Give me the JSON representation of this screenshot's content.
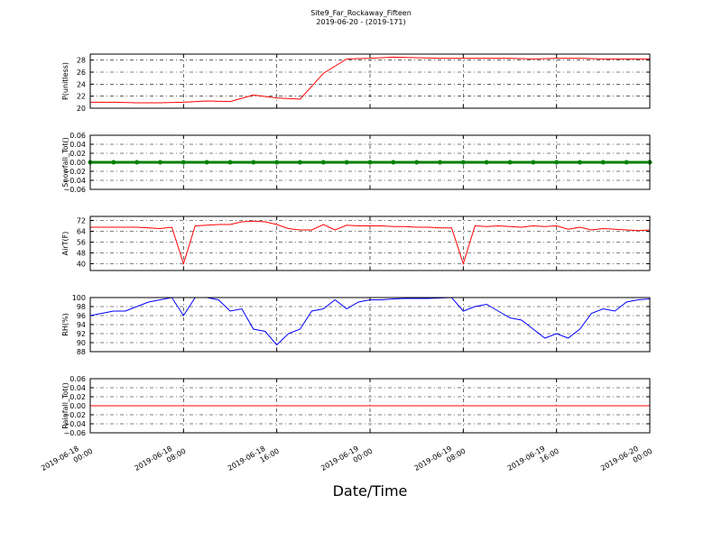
{
  "chart_data": [
    {
      "type": "line",
      "title": "Site9_Far_Rockaway_Fifteen",
      "subtitle": "2019-06-20 - (2019-171)",
      "ylabel": "P(unitless)",
      "color": "#ff0000",
      "x": [
        "2019-06-18 00:00",
        "2019-06-18 02:00",
        "2019-06-18 04:00",
        "2019-06-18 06:00",
        "2019-06-18 08:00",
        "2019-06-18 10:00",
        "2019-06-18 12:00",
        "2019-06-18 14:00",
        "2019-06-18 16:00",
        "2019-06-18 18:00",
        "2019-06-18 20:00",
        "2019-06-18 22:00",
        "2019-06-19 00:00",
        "2019-06-19 02:00",
        "2019-06-19 04:00",
        "2019-06-19 06:00",
        "2019-06-19 08:00",
        "2019-06-19 10:00",
        "2019-06-19 12:00",
        "2019-06-19 14:00",
        "2019-06-19 16:00",
        "2019-06-19 18:00",
        "2019-06-19 20:00",
        "2019-06-19 22:00",
        "2019-06-20 00:00"
      ],
      "values": [
        21.0,
        21.0,
        20.9,
        20.9,
        21.0,
        21.2,
        21.1,
        22.2,
        21.7,
        21.5,
        25.8,
        28.2,
        28.3,
        28.5,
        28.4,
        28.3,
        28.3,
        28.3,
        28.3,
        28.2,
        28.3,
        28.3,
        28.2,
        28.2,
        28.2
      ],
      "xlim": [
        "2019-06-18 00:00",
        "2019-06-20 00:00"
      ],
      "xticks": [
        "2019-06-18 00:00",
        "2019-06-18 08:00",
        "2019-06-18 16:00",
        "2019-06-19 00:00",
        "2019-06-19 08:00",
        "2019-06-19 16:00",
        "2019-06-20 00:00"
      ],
      "ylim": [
        20,
        29
      ],
      "yticks": [
        20,
        22,
        24,
        26,
        28
      ],
      "grid": true
    },
    {
      "type": "line",
      "ylabel": "Snowfall_Tot()",
      "color": "#008000",
      "marker": "o",
      "x": [
        "2019-06-18 00:00",
        "2019-06-18 02:00",
        "2019-06-18 04:00",
        "2019-06-18 06:00",
        "2019-06-18 08:00",
        "2019-06-18 10:00",
        "2019-06-18 12:00",
        "2019-06-18 14:00",
        "2019-06-18 16:00",
        "2019-06-18 18:00",
        "2019-06-18 20:00",
        "2019-06-18 22:00",
        "2019-06-19 00:00",
        "2019-06-19 02:00",
        "2019-06-19 04:00",
        "2019-06-19 06:00",
        "2019-06-19 08:00",
        "2019-06-19 10:00",
        "2019-06-19 12:00",
        "2019-06-19 14:00",
        "2019-06-19 16:00",
        "2019-06-19 18:00",
        "2019-06-19 20:00",
        "2019-06-19 22:00",
        "2019-06-20 00:00"
      ],
      "values": [
        0,
        0,
        0,
        0,
        0,
        0,
        0,
        0,
        0,
        0,
        0,
        0,
        0,
        0,
        0,
        0,
        0,
        0,
        0,
        0,
        0,
        0,
        0,
        0,
        0
      ],
      "xlim": [
        "2019-06-18 00:00",
        "2019-06-20 00:00"
      ],
      "xticks": [
        "2019-06-18 00:00",
        "2019-06-18 08:00",
        "2019-06-18 16:00",
        "2019-06-19 00:00",
        "2019-06-19 08:00",
        "2019-06-19 16:00",
        "2019-06-20 00:00"
      ],
      "ylim": [
        -0.06,
        0.06
      ],
      "yticks": [
        {
          "value": -0.06,
          "label": "−0.06"
        },
        {
          "value": -0.04,
          "label": "−0.04"
        },
        {
          "value": -0.02,
          "label": "−0.02"
        },
        {
          "value": 0,
          "label": "0.00"
        },
        {
          "value": 0.02,
          "label": "0.02"
        },
        {
          "value": 0.04,
          "label": "0.04"
        },
        {
          "value": 0.06,
          "label": "0.06"
        }
      ],
      "grid": true
    },
    {
      "type": "line",
      "ylabel": "AirT(F)",
      "color": "#ff0000",
      "x": [
        "2019-06-18 00:00",
        "2019-06-18 01:00",
        "2019-06-18 02:00",
        "2019-06-18 03:00",
        "2019-06-18 04:00",
        "2019-06-18 05:00",
        "2019-06-18 06:00",
        "2019-06-18 07:00",
        "2019-06-18 08:00",
        "2019-06-18 09:00",
        "2019-06-18 10:00",
        "2019-06-18 11:00",
        "2019-06-18 12:00",
        "2019-06-18 13:00",
        "2019-06-18 14:00",
        "2019-06-18 15:00",
        "2019-06-18 16:00",
        "2019-06-18 17:00",
        "2019-06-18 18:00",
        "2019-06-18 19:00",
        "2019-06-18 20:00",
        "2019-06-18 21:00",
        "2019-06-18 22:00",
        "2019-06-18 23:00",
        "2019-06-19 00:00",
        "2019-06-19 01:00",
        "2019-06-19 02:00",
        "2019-06-19 03:00",
        "2019-06-19 04:00",
        "2019-06-19 05:00",
        "2019-06-19 06:00",
        "2019-06-19 07:00",
        "2019-06-19 08:00",
        "2019-06-19 09:00",
        "2019-06-19 10:00",
        "2019-06-19 11:00",
        "2019-06-19 12:00",
        "2019-06-19 13:00",
        "2019-06-19 14:00",
        "2019-06-19 15:00",
        "2019-06-19 16:00",
        "2019-06-19 17:00",
        "2019-06-19 18:00",
        "2019-06-19 19:00",
        "2019-06-19 20:00",
        "2019-06-19 21:00",
        "2019-06-19 22:00",
        "2019-06-19 23:00",
        "2019-06-20 00:00"
      ],
      "values": [
        67,
        67,
        67,
        67,
        67,
        66.5,
        66,
        67,
        40,
        68,
        68.5,
        69,
        69,
        71,
        71.5,
        71,
        69,
        66,
        65,
        65,
        69,
        65,
        68.5,
        68,
        68,
        68,
        67.5,
        67.5,
        67,
        67,
        66.5,
        66.5,
        40,
        68,
        67.5,
        68,
        67.5,
        67,
        68,
        67.5,
        68,
        65.5,
        67,
        65,
        66,
        65.5,
        65,
        64.5,
        65
      ],
      "xlim": [
        "2019-06-18 00:00",
        "2019-06-20 00:00"
      ],
      "xticks": [
        "2019-06-18 00:00",
        "2019-06-18 08:00",
        "2019-06-18 16:00",
        "2019-06-19 00:00",
        "2019-06-19 08:00",
        "2019-06-19 16:00",
        "2019-06-20 00:00"
      ],
      "ylim": [
        35,
        75
      ],
      "yticks": [
        40,
        48,
        56,
        64,
        72
      ],
      "grid": true
    },
    {
      "type": "line",
      "ylabel": "RH(%)",
      "color": "#0000ff",
      "x": [
        "2019-06-18 00:00",
        "2019-06-18 01:00",
        "2019-06-18 02:00",
        "2019-06-18 03:00",
        "2019-06-18 04:00",
        "2019-06-18 05:00",
        "2019-06-18 06:00",
        "2019-06-18 07:00",
        "2019-06-18 08:00",
        "2019-06-18 09:00",
        "2019-06-18 10:00",
        "2019-06-18 11:00",
        "2019-06-18 12:00",
        "2019-06-18 13:00",
        "2019-06-18 14:00",
        "2019-06-18 15:00",
        "2019-06-18 16:00",
        "2019-06-18 17:00",
        "2019-06-18 18:00",
        "2019-06-18 19:00",
        "2019-06-18 20:00",
        "2019-06-18 21:00",
        "2019-06-18 22:00",
        "2019-06-18 23:00",
        "2019-06-19 00:00",
        "2019-06-19 01:00",
        "2019-06-19 02:00",
        "2019-06-19 03:00",
        "2019-06-19 04:00",
        "2019-06-19 05:00",
        "2019-06-19 06:00",
        "2019-06-19 07:00",
        "2019-06-19 08:00",
        "2019-06-19 09:00",
        "2019-06-19 10:00",
        "2019-06-19 11:00",
        "2019-06-19 12:00",
        "2019-06-19 13:00",
        "2019-06-19 14:00",
        "2019-06-19 15:00",
        "2019-06-19 16:00",
        "2019-06-19 17:00",
        "2019-06-19 18:00",
        "2019-06-19 19:00",
        "2019-06-19 20:00",
        "2019-06-19 21:00",
        "2019-06-19 22:00",
        "2019-06-19 23:00",
        "2019-06-20 00:00"
      ],
      "values": [
        96,
        96.5,
        97,
        97,
        98,
        99,
        99.5,
        100,
        96,
        100,
        100,
        99.5,
        97,
        97.5,
        93,
        92.5,
        89.5,
        92,
        93,
        97,
        97.5,
        99.5,
        97.5,
        99,
        99.5,
        99.5,
        99.7,
        99.8,
        99.8,
        99.8,
        99.9,
        100,
        97,
        98,
        98.5,
        97,
        95.5,
        95,
        93,
        91,
        92,
        91,
        93,
        96.5,
        97.5,
        97,
        99,
        99.5,
        99.7
      ],
      "xlim": [
        "2019-06-18 00:00",
        "2019-06-20 00:00"
      ],
      "xticks": [
        "2019-06-18 00:00",
        "2019-06-18 08:00",
        "2019-06-18 16:00",
        "2019-06-19 00:00",
        "2019-06-19 08:00",
        "2019-06-19 16:00",
        "2019-06-20 00:00"
      ],
      "ylim": [
        88,
        100
      ],
      "yticks": [
        88,
        90,
        92,
        94,
        96,
        98,
        100
      ],
      "grid": true
    },
    {
      "type": "line",
      "ylabel": "Rainfall_Tot()",
      "xlabel": "Date/Time",
      "color": "#ff0000",
      "x": [
        "2019-06-18 00:00",
        "2019-06-18 02:00",
        "2019-06-18 04:00",
        "2019-06-18 06:00",
        "2019-06-18 08:00",
        "2019-06-18 10:00",
        "2019-06-18 12:00",
        "2019-06-18 14:00",
        "2019-06-18 16:00",
        "2019-06-18 18:00",
        "2019-06-18 20:00",
        "2019-06-18 22:00",
        "2019-06-19 00:00",
        "2019-06-19 02:00",
        "2019-06-19 04:00",
        "2019-06-19 06:00",
        "2019-06-19 08:00",
        "2019-06-19 10:00",
        "2019-06-19 12:00",
        "2019-06-19 14:00",
        "2019-06-19 16:00",
        "2019-06-19 18:00",
        "2019-06-19 20:00",
        "2019-06-19 22:00",
        "2019-06-20 00:00"
      ],
      "values": [
        0,
        0,
        0,
        0,
        0,
        0,
        0,
        0,
        0,
        0,
        0,
        0,
        0,
        0,
        0,
        0,
        0,
        0,
        0,
        0,
        0,
        0,
        0,
        0,
        0
      ],
      "xlim": [
        "2019-06-18 00:00",
        "2019-06-20 00:00"
      ],
      "xticks": [
        "2019-06-18 00:00",
        "2019-06-18 08:00",
        "2019-06-18 16:00",
        "2019-06-19 00:00",
        "2019-06-19 08:00",
        "2019-06-19 16:00",
        "2019-06-20 00:00"
      ],
      "ylim": [
        -0.06,
        0.06
      ],
      "yticks": [
        {
          "value": -0.06,
          "label": "−0.06"
        },
        {
          "value": -0.04,
          "label": "−0.04"
        },
        {
          "value": -0.02,
          "label": "−0.02"
        },
        {
          "value": 0,
          "label": "0.00"
        },
        {
          "value": 0.02,
          "label": "0.02"
        },
        {
          "value": 0.04,
          "label": "0.04"
        },
        {
          "value": 0.06,
          "label": "0.06"
        }
      ],
      "grid": true
    }
  ]
}
